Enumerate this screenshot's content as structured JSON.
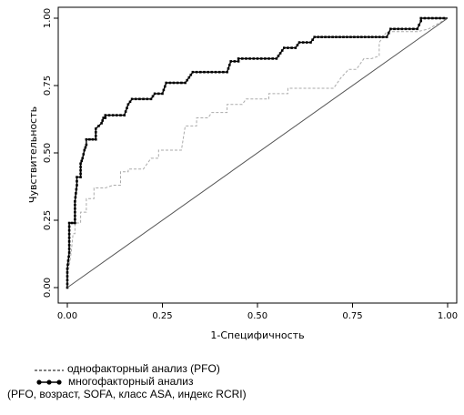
{
  "chart_data": {
    "type": "line",
    "xlabel": "1-Специфичность",
    "ylabel": "Чувствительность",
    "xlim": [
      0,
      1
    ],
    "ylim": [
      0,
      1
    ],
    "x_ticks": [
      "0.00",
      "0.25",
      "0.50",
      "0.75",
      "1.00"
    ],
    "y_ticks": [
      "0.00",
      "0.25",
      "0.50",
      "0.75",
      "1.00"
    ],
    "grid": false,
    "series": [
      {
        "name": "однофакторный анализ (PFO)",
        "style": "dashed",
        "color": "#aaaaaa",
        "points": [
          [
            0.0,
            0.0
          ],
          [
            0.0,
            0.05
          ],
          [
            0.005,
            0.08
          ],
          [
            0.01,
            0.13
          ],
          [
            0.015,
            0.2
          ],
          [
            0.02,
            0.2
          ],
          [
            0.02,
            0.24
          ],
          [
            0.035,
            0.24
          ],
          [
            0.035,
            0.28
          ],
          [
            0.05,
            0.28
          ],
          [
            0.05,
            0.33
          ],
          [
            0.07,
            0.33
          ],
          [
            0.07,
            0.37
          ],
          [
            0.1,
            0.37
          ],
          [
            0.12,
            0.38
          ],
          [
            0.14,
            0.38
          ],
          [
            0.14,
            0.43
          ],
          [
            0.16,
            0.43
          ],
          [
            0.16,
            0.44
          ],
          [
            0.2,
            0.44
          ],
          [
            0.22,
            0.48
          ],
          [
            0.24,
            0.48
          ],
          [
            0.24,
            0.51
          ],
          [
            0.3,
            0.51
          ],
          [
            0.31,
            0.6
          ],
          [
            0.34,
            0.6
          ],
          [
            0.34,
            0.63
          ],
          [
            0.37,
            0.63
          ],
          [
            0.38,
            0.65
          ],
          [
            0.42,
            0.65
          ],
          [
            0.42,
            0.68
          ],
          [
            0.46,
            0.68
          ],
          [
            0.47,
            0.7
          ],
          [
            0.53,
            0.7
          ],
          [
            0.53,
            0.72
          ],
          [
            0.58,
            0.72
          ],
          [
            0.58,
            0.74
          ],
          [
            0.7,
            0.74
          ],
          [
            0.72,
            0.78
          ],
          [
            0.74,
            0.81
          ],
          [
            0.76,
            0.81
          ],
          [
            0.78,
            0.85
          ],
          [
            0.8,
            0.85
          ],
          [
            0.82,
            0.86
          ],
          [
            0.82,
            0.91
          ],
          [
            0.84,
            0.95
          ],
          [
            0.88,
            0.95
          ],
          [
            0.92,
            0.95
          ],
          [
            0.95,
            0.96
          ],
          [
            1.0,
            1.0
          ]
        ]
      },
      {
        "name": "многофакторный анализ",
        "style": "dotted-markers",
        "color": "#000000",
        "points": [
          [
            0.0,
            0.0
          ],
          [
            0.0,
            0.07
          ],
          [
            0.005,
            0.13
          ],
          [
            0.005,
            0.24
          ],
          [
            0.02,
            0.24
          ],
          [
            0.02,
            0.32
          ],
          [
            0.025,
            0.38
          ],
          [
            0.025,
            0.41
          ],
          [
            0.035,
            0.41
          ],
          [
            0.035,
            0.46
          ],
          [
            0.04,
            0.48
          ],
          [
            0.045,
            0.51
          ],
          [
            0.05,
            0.53
          ],
          [
            0.05,
            0.55
          ],
          [
            0.075,
            0.55
          ],
          [
            0.075,
            0.59
          ],
          [
            0.09,
            0.61
          ],
          [
            0.095,
            0.63
          ],
          [
            0.1,
            0.63
          ],
          [
            0.1,
            0.64
          ],
          [
            0.15,
            0.64
          ],
          [
            0.16,
            0.68
          ],
          [
            0.17,
            0.7
          ],
          [
            0.22,
            0.7
          ],
          [
            0.23,
            0.72
          ],
          [
            0.25,
            0.72
          ],
          [
            0.26,
            0.76
          ],
          [
            0.31,
            0.76
          ],
          [
            0.32,
            0.78
          ],
          [
            0.33,
            0.8
          ],
          [
            0.42,
            0.8
          ],
          [
            0.43,
            0.84
          ],
          [
            0.45,
            0.84
          ],
          [
            0.45,
            0.85
          ],
          [
            0.55,
            0.85
          ],
          [
            0.56,
            0.87
          ],
          [
            0.57,
            0.89
          ],
          [
            0.6,
            0.89
          ],
          [
            0.61,
            0.91
          ],
          [
            0.64,
            0.91
          ],
          [
            0.65,
            0.93
          ],
          [
            0.84,
            0.93
          ],
          [
            0.85,
            0.96
          ],
          [
            0.92,
            0.96
          ],
          [
            0.93,
            0.99
          ],
          [
            0.93,
            1.0
          ],
          [
            1.0,
            1.0
          ]
        ]
      },
      {
        "name": "reference",
        "style": "solid",
        "color": "#555555",
        "points": [
          [
            0,
            0
          ],
          [
            1,
            1
          ]
        ]
      }
    ]
  },
  "legend": {
    "line1": "однофакторный анализ (PFO)",
    "line2": "многофакторный анализ",
    "line3": "(PFO, возраст, SOFA, класс ASA, индекс RCRI)"
  }
}
